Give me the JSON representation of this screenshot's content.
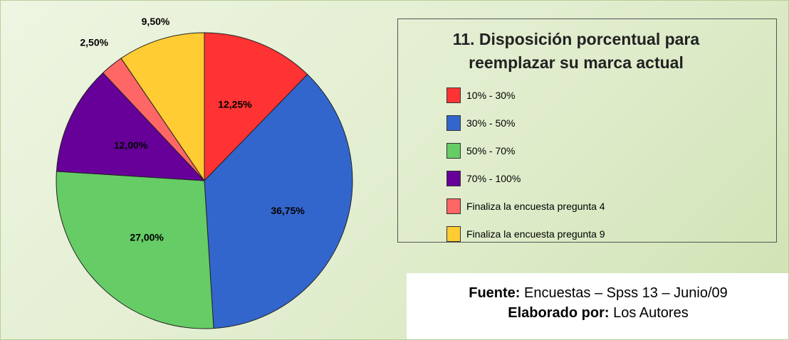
{
  "chart_data": {
    "type": "pie",
    "title": "11. Disposición porcentual para reemplazar su marca actual",
    "categories": [
      "10% - 30%",
      "30% - 50%",
      "50% - 70%",
      "70% - 100%",
      "Finaliza la encuesta pregunta 4",
      "Finaliza la encuesta pregunta 9"
    ],
    "values": [
      12.25,
      36.75,
      27,
      12,
      2.5,
      9.5
    ],
    "value_labels": [
      "12,25%",
      "36,75%",
      "27,00%",
      "12,00%",
      "2,50%",
      "9,50%"
    ],
    "colors": [
      "#ff3333",
      "#3366cc",
      "#66cc66",
      "#660099",
      "#ff6666",
      "#ffcc33"
    ],
    "source": {
      "label": "Fuente:",
      "text": "Encuestas – Spss 13 – Junio/09"
    },
    "author": {
      "label": "Elaborado por:",
      "text": "Los Autores"
    }
  }
}
